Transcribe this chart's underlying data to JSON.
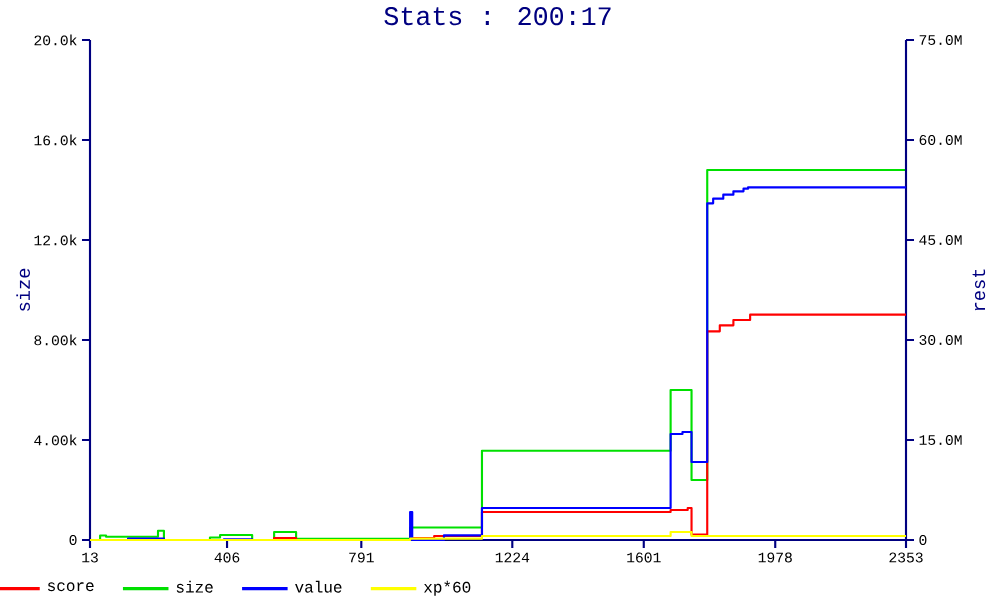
{
  "chart_data": {
    "type": "step",
    "title": "Stats : 200:17",
    "ylabel": "size",
    "y2label": "rest",
    "legend": "bottom",
    "grid": false,
    "xlim": [
      13,
      2353
    ],
    "xticks": [
      13,
      406,
      791,
      1224,
      1601,
      1978,
      2353
    ],
    "ylim": [
      0,
      20000
    ],
    "yticks": [
      0,
      {
        "value": 4000,
        "label": "4.00k"
      },
      {
        "value": 8000,
        "label": "8.00k"
      },
      {
        "value": 12000,
        "label": "12.0k"
      },
      {
        "value": 16000,
        "label": "16.0k"
      },
      {
        "value": 20000,
        "label": "20.0k"
      }
    ],
    "y2lim": [
      0,
      75000000
    ],
    "y2ticks": [
      0,
      {
        "value": 15000000,
        "label": "15.0M"
      },
      {
        "value": 30000000,
        "label": "30.0M"
      },
      {
        "value": 45000000,
        "label": "45.0M"
      },
      {
        "value": 60000000,
        "label": "60.0M"
      },
      {
        "value": 75000000,
        "label": "75.0M"
      }
    ],
    "series": [
      {
        "name": "score",
        "color": "#ff0000",
        "axis": "y2",
        "x": [
          13,
          541,
          604,
          931,
          1000,
          1137,
          1678,
          1727,
          1738,
          1783,
          1819,
          1858,
          1906,
          2353
        ],
        "values": [
          0,
          300000,
          0,
          300000,
          600000,
          4200000,
          4500000,
          4800000,
          800000,
          31300000,
          32200000,
          33000000,
          33800000,
          33800000
        ]
      },
      {
        "name": "size",
        "color": "#00e000",
        "axis": "y",
        "x": [
          13,
          42,
          59,
          208,
          225,
          357,
          386,
          478,
          541,
          604,
          931,
          1137,
          1678,
          1738,
          1783,
          2353
        ],
        "values": [
          0,
          180,
          130,
          370,
          0,
          100,
          200,
          0,
          320,
          50,
          500,
          3570,
          6000,
          2400,
          14800,
          14800
        ]
      },
      {
        "name": "value",
        "color": "#0000ff",
        "axis": "y2",
        "x": [
          13,
          122,
          225,
          397,
          478,
          931,
          937,
          1028,
          1137,
          1678,
          1712,
          1738,
          1783,
          1800,
          1829,
          1858,
          1887,
          1900,
          2353
        ],
        "values": [
          0,
          200000,
          0,
          100000,
          0,
          4200000,
          0,
          700000,
          4800000,
          15900000,
          16200000,
          11700000,
          50500000,
          51200000,
          51800000,
          52300000,
          52700000,
          52900000,
          52900000
        ]
      },
      {
        "name": "xp*60",
        "color": "#ffff00",
        "axis": "y2",
        "x": [
          13,
          931,
          1137,
          1678,
          1738,
          2353
        ],
        "values": [
          0,
          200000,
          600000,
          1200000,
          600000,
          600000
        ]
      }
    ]
  }
}
